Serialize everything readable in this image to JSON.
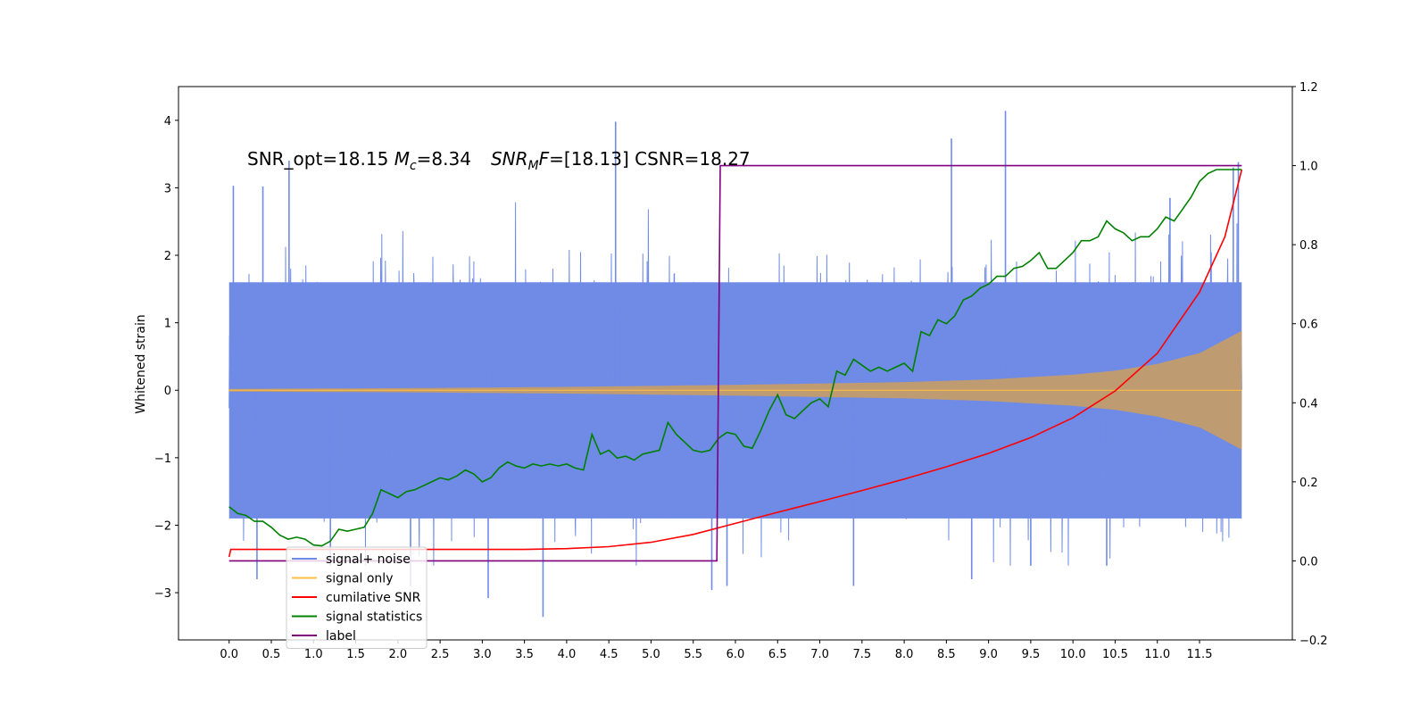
{
  "chart_data": {
    "type": "line",
    "title": "",
    "xlabel": "",
    "ylabel": "Whitened strain",
    "xlim": [
      -0.6,
      12.6
    ],
    "ylim": [
      -3.7,
      4.5
    ],
    "y2lim": [
      -0.2,
      1.2
    ],
    "x_ticks": [
      0.0,
      0.5,
      1.0,
      1.5,
      2.0,
      2.5,
      3.0,
      3.5,
      4.0,
      4.5,
      5.0,
      5.5,
      6.0,
      6.5,
      7.0,
      7.5,
      8.0,
      8.5,
      9.0,
      9.5,
      10.0,
      10.5,
      11.0,
      11.5
    ],
    "x_tick_labels": [
      "0.0",
      "0.5",
      "1.0",
      "1.5",
      "2.0",
      "2.5",
      "3.0",
      "3.5",
      "4.0",
      "4.5",
      "5.0",
      "5.5",
      "6.0",
      "6.5",
      "7.0",
      "7.5",
      "8.0",
      "8.5",
      "9.0",
      "9.5",
      "10.0",
      "10.5",
      "11.0",
      "11.5"
    ],
    "y_ticks": [
      -3,
      -2,
      -1,
      0,
      1,
      2,
      3,
      4
    ],
    "y_tick_labels": [
      "−3",
      "−2",
      "−1",
      "0",
      "1",
      "2",
      "3",
      "4"
    ],
    "y2_ticks": [
      -0.2,
      0.0,
      0.2,
      0.4,
      0.6,
      0.8,
      1.0,
      1.2
    ],
    "y2_tick_labels": [
      "−0.2",
      "0.0",
      "0.2",
      "0.4",
      "0.6",
      "0.8",
      "1.0",
      "1.2"
    ],
    "annotation": {
      "prefix": "SNR_opt=18.15 ",
      "mc_base": "M",
      "mc_sub": "c",
      "mc_value": "=8.34",
      "snr_base": "SNR",
      "snr_sub": "M",
      "snr_tail": "F",
      "snr_value": "=[18.13] CSNR=18.27",
      "x": 0.2,
      "y": 3.33
    },
    "legend": {
      "position": "lower-left",
      "entries": [
        {
          "label": "signal+ noise",
          "color": "#6f8be6"
        },
        {
          "label": "signal only",
          "color": "#ffbf40"
        },
        {
          "label": "cumilative SNR",
          "color": "#ff0000"
        },
        {
          "label": "signal statistics",
          "color": "#008000"
        },
        {
          "label": "label",
          "color": "#800080"
        }
      ]
    },
    "series": [
      {
        "name": "signal+ noise",
        "axis": "left",
        "color": "#6f8be6",
        "x_range": [
          0.0,
          12.0
        ],
        "noise_band_low": -1.9,
        "noise_band_high": 1.6,
        "spikes": [
          {
            "x": 0.05,
            "y": 3.03
          },
          {
            "x": 0.4,
            "y": 3.02
          },
          {
            "x": 0.71,
            "y": 3.4
          },
          {
            "x": 0.33,
            "y": -2.8
          },
          {
            "x": 1.2,
            "y": -2.6
          },
          {
            "x": 2.15,
            "y": -2.9
          },
          {
            "x": 3.07,
            "y": -3.08
          },
          {
            "x": 3.72,
            "y": -3.36
          },
          {
            "x": 4.58,
            "y": 3.98
          },
          {
            "x": 5.72,
            "y": -2.96
          },
          {
            "x": 5.9,
            "y": -2.9
          },
          {
            "x": 7.4,
            "y": -2.9
          },
          {
            "x": 8.56,
            "y": 3.73
          },
          {
            "x": 8.8,
            "y": -2.8
          },
          {
            "x": 9.2,
            "y": 4.14
          },
          {
            "x": 9.5,
            "y": -2.6
          },
          {
            "x": 10.4,
            "y": -2.6
          },
          {
            "x": 11.15,
            "y": 2.85
          },
          {
            "x": 11.9,
            "y": 3.3
          },
          {
            "x": 11.96,
            "y": 3.38
          }
        ]
      },
      {
        "name": "signal only",
        "axis": "left",
        "color": "#ffbf40",
        "x_range": [
          0.0,
          12.0
        ],
        "amplitude_x": [
          0,
          2,
          4,
          6,
          8,
          9,
          10,
          10.5,
          11,
          11.5,
          12.0
        ],
        "amplitude_y": [
          0.02,
          0.03,
          0.05,
          0.08,
          0.12,
          0.16,
          0.23,
          0.29,
          0.39,
          0.55,
          0.88
        ]
      },
      {
        "name": "cumilative SNR",
        "axis": "right",
        "color": "#ff0000",
        "x": [
          0.0,
          0.02,
          1.0,
          2.0,
          3.0,
          3.5,
          4.0,
          4.5,
          5.0,
          5.5,
          6.0,
          6.5,
          7.0,
          7.5,
          8.0,
          8.5,
          9.0,
          9.5,
          10.0,
          10.5,
          11.0,
          11.5,
          11.8,
          12.0
        ],
        "values": [
          0.01,
          0.029,
          0.029,
          0.029,
          0.029,
          0.029,
          0.031,
          0.036,
          0.047,
          0.067,
          0.095,
          0.123,
          0.15,
          0.178,
          0.207,
          0.238,
          0.272,
          0.312,
          0.362,
          0.43,
          0.525,
          0.68,
          0.82,
          0.99
        ]
      },
      {
        "name": "signal statistics",
        "axis": "right",
        "color": "#008000",
        "x": [
          0.0,
          0.1,
          0.2,
          0.3,
          0.4,
          0.5,
          0.6,
          0.7,
          0.8,
          0.9,
          1.0,
          1.1,
          1.2,
          1.3,
          1.4,
          1.5,
          1.6,
          1.7,
          1.8,
          1.9,
          2.0,
          2.1,
          2.2,
          2.3,
          2.4,
          2.5,
          2.6,
          2.7,
          2.8,
          2.9,
          3.0,
          3.1,
          3.2,
          3.3,
          3.4,
          3.5,
          3.6,
          3.7,
          3.8,
          3.9,
          4.0,
          4.1,
          4.2,
          4.3,
          4.4,
          4.5,
          4.6,
          4.7,
          4.8,
          4.9,
          5.0,
          5.1,
          5.2,
          5.3,
          5.4,
          5.5,
          5.6,
          5.7,
          5.8,
          5.9,
          6.0,
          6.1,
          6.2,
          6.3,
          6.4,
          6.5,
          6.6,
          6.7,
          6.8,
          6.9,
          7.0,
          7.1,
          7.2,
          7.3,
          7.4,
          7.5,
          7.6,
          7.7,
          7.8,
          7.9,
          8.0,
          8.1,
          8.2,
          8.3,
          8.4,
          8.5,
          8.6,
          8.7,
          8.8,
          8.9,
          9.0,
          9.1,
          9.2,
          9.3,
          9.4,
          9.5,
          9.6,
          9.7,
          9.8,
          9.9,
          10.0,
          10.1,
          10.2,
          10.3,
          10.4,
          10.5,
          10.6,
          10.7,
          10.8,
          10.9,
          11.0,
          11.1,
          11.2,
          11.3,
          11.4,
          11.5,
          11.6,
          11.7,
          11.8,
          11.9,
          12.0
        ],
        "values": [
          0.137,
          0.12,
          0.115,
          0.1,
          0.1,
          0.085,
          0.065,
          0.055,
          0.06,
          0.055,
          0.04,
          0.038,
          0.05,
          0.08,
          0.075,
          0.08,
          0.085,
          0.12,
          0.18,
          0.17,
          0.16,
          0.175,
          0.18,
          0.19,
          0.2,
          0.21,
          0.205,
          0.215,
          0.23,
          0.22,
          0.2,
          0.21,
          0.235,
          0.25,
          0.24,
          0.235,
          0.245,
          0.24,
          0.245,
          0.24,
          0.245,
          0.235,
          0.23,
          0.32,
          0.27,
          0.28,
          0.26,
          0.265,
          0.255,
          0.27,
          0.275,
          0.28,
          0.35,
          0.32,
          0.3,
          0.28,
          0.275,
          0.28,
          0.31,
          0.325,
          0.32,
          0.29,
          0.285,
          0.33,
          0.38,
          0.42,
          0.37,
          0.36,
          0.38,
          0.4,
          0.41,
          0.39,
          0.48,
          0.47,
          0.51,
          0.495,
          0.48,
          0.49,
          0.48,
          0.49,
          0.5,
          0.48,
          0.58,
          0.57,
          0.61,
          0.6,
          0.62,
          0.66,
          0.67,
          0.69,
          0.7,
          0.72,
          0.72,
          0.74,
          0.745,
          0.76,
          0.78,
          0.74,
          0.74,
          0.76,
          0.78,
          0.81,
          0.81,
          0.82,
          0.86,
          0.84,
          0.83,
          0.81,
          0.82,
          0.82,
          0.84,
          0.87,
          0.86,
          0.89,
          0.92,
          0.96,
          0.98,
          0.99,
          0.99,
          0.99,
          0.99
        ]
      },
      {
        "name": "label",
        "axis": "right",
        "color": "#800080",
        "x": [
          0.0,
          5.78,
          5.82,
          12.0
        ],
        "values": [
          0.0,
          0.0,
          1.0,
          1.0
        ]
      }
    ]
  }
}
